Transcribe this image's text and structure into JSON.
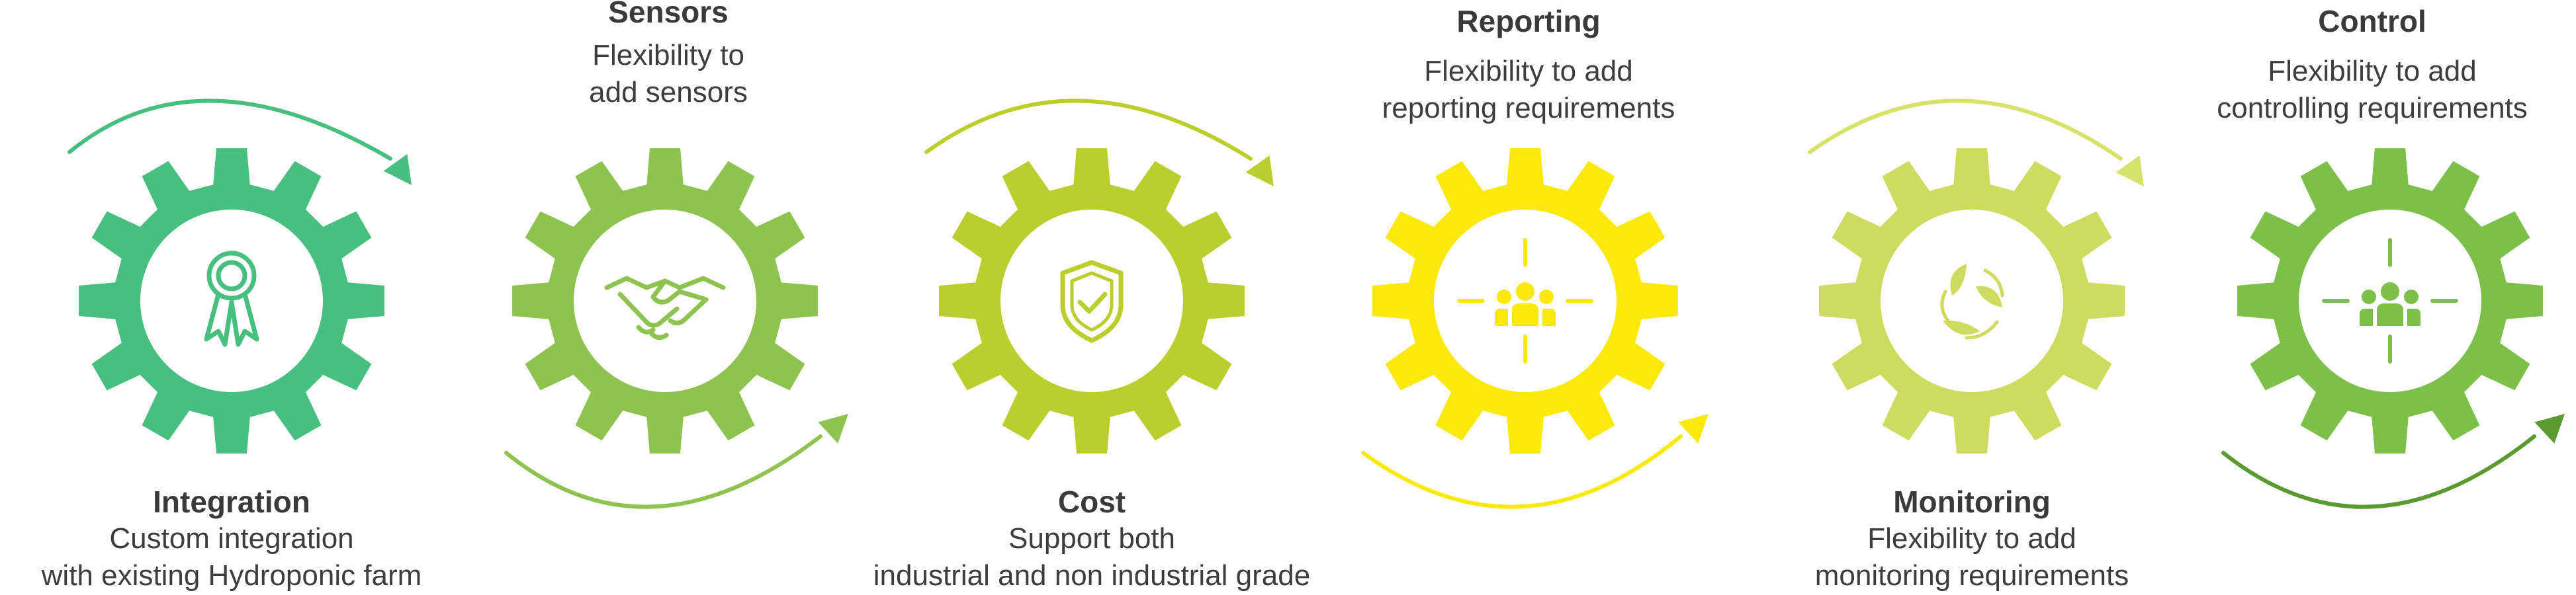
{
  "steps": [
    {
      "title": "Integration",
      "lines": [
        "Custom integration",
        "with existing Hydroponic farm"
      ],
      "color": "#47bf7e",
      "icon": "award-ribbon-icon",
      "arrow_color": "#47bf7e"
    },
    {
      "title": "Sensors",
      "lines": [
        "Flexibility to",
        "add sensors"
      ],
      "color": "#8dc34e",
      "icon": "handshake-icon",
      "arrow_color": "#8dc34e"
    },
    {
      "title": "Cost",
      "lines": [
        "Support both",
        "industrial and non industrial grade"
      ],
      "color": "#bcce2e",
      "icon": "shield-check-icon",
      "arrow_color": "#bcce2e"
    },
    {
      "title": "Reporting",
      "lines": [
        "Flexibility to add",
        "reporting requirements"
      ],
      "color": "#fbe80c",
      "icon": "team-focus-icon",
      "arrow_color": "#fbe80c"
    },
    {
      "title": "Monitoring",
      "lines": [
        "Flexibility to add",
        "monitoring requirements"
      ],
      "color": "#cfdb5e",
      "icon": "recycle-leaves-icon",
      "arrow_color": "#d7e26a"
    },
    {
      "title": "Control",
      "lines": [
        "Flexibility to add",
        "controlling requirements"
      ],
      "color": "#7cc04a",
      "icon": "team-focus-icon",
      "arrow_color": "#5a9a30"
    }
  ]
}
